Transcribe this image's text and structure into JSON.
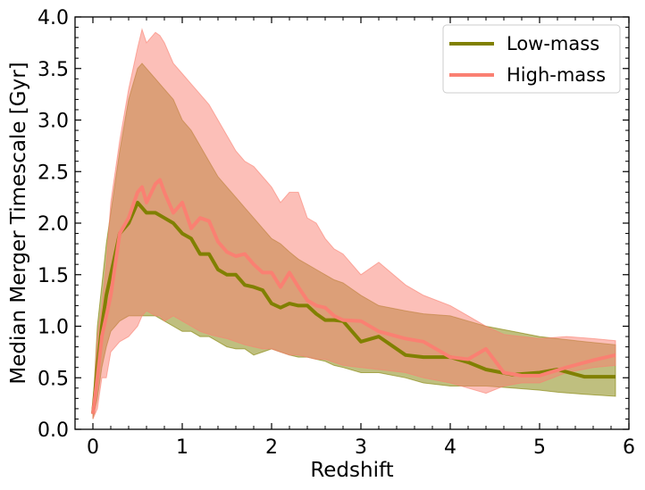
{
  "chart_data": {
    "type": "line",
    "title": "",
    "xlabel": "Redshift",
    "ylabel": "Median Merger Timescale [Gyr]",
    "xlim": [
      -0.2,
      6.0
    ],
    "ylim": [
      0.0,
      4.0
    ],
    "xticks": [
      0,
      1,
      2,
      3,
      4,
      5,
      6
    ],
    "xtick_labels": [
      "0",
      "1",
      "2",
      "3",
      "4",
      "5",
      "6"
    ],
    "yticks": [
      0.0,
      0.5,
      1.0,
      1.5,
      2.0,
      2.5,
      3.0,
      3.5,
      4.0
    ],
    "ytick_labels": [
      "0.0",
      "0.5",
      "1.0",
      "1.5",
      "2.0",
      "2.5",
      "3.0",
      "3.5",
      "4.0"
    ],
    "grid": false,
    "legend_position": "top-right",
    "series": [
      {
        "name": "Low-mass",
        "color": "#808000",
        "fill_color": "#808000",
        "fill_opacity": 0.5,
        "x": [
          0.0,
          0.05,
          0.1,
          0.15,
          0.2,
          0.3,
          0.4,
          0.5,
          0.55,
          0.6,
          0.7,
          0.8,
          0.9,
          1.0,
          1.1,
          1.2,
          1.3,
          1.4,
          1.5,
          1.6,
          1.7,
          1.8,
          1.9,
          2.0,
          2.1,
          2.2,
          2.3,
          2.4,
          2.5,
          2.6,
          2.7,
          2.8,
          3.0,
          3.2,
          3.5,
          3.7,
          4.0,
          4.2,
          4.4,
          4.7,
          5.0,
          5.2,
          5.5,
          5.85
        ],
        "values": [
          0.15,
          0.6,
          1.0,
          1.3,
          1.5,
          1.9,
          2.0,
          2.2,
          2.15,
          2.1,
          2.1,
          2.05,
          2.0,
          1.9,
          1.85,
          1.7,
          1.7,
          1.55,
          1.5,
          1.5,
          1.4,
          1.38,
          1.35,
          1.22,
          1.18,
          1.22,
          1.2,
          1.2,
          1.12,
          1.06,
          1.06,
          1.05,
          0.85,
          0.9,
          0.72,
          0.7,
          0.7,
          0.65,
          0.58,
          0.53,
          0.55,
          0.58,
          0.51,
          0.51
        ],
        "lower": [
          0.1,
          0.3,
          0.6,
          0.8,
          0.95,
          1.05,
          1.1,
          1.1,
          1.1,
          1.1,
          1.1,
          1.05,
          1.0,
          0.95,
          0.95,
          0.9,
          0.9,
          0.85,
          0.8,
          0.78,
          0.78,
          0.72,
          0.75,
          0.78,
          0.75,
          0.72,
          0.7,
          0.7,
          0.68,
          0.66,
          0.62,
          0.6,
          0.55,
          0.55,
          0.5,
          0.45,
          0.42,
          0.42,
          0.42,
          0.4,
          0.38,
          0.36,
          0.34,
          0.32
        ],
        "upper": [
          0.2,
          1.0,
          1.4,
          1.8,
          2.1,
          2.7,
          3.2,
          3.5,
          3.55,
          3.5,
          3.4,
          3.3,
          3.2,
          3.0,
          2.9,
          2.75,
          2.6,
          2.45,
          2.35,
          2.25,
          2.15,
          2.05,
          1.95,
          1.85,
          1.8,
          1.72,
          1.65,
          1.6,
          1.55,
          1.5,
          1.45,
          1.42,
          1.3,
          1.2,
          1.15,
          1.12,
          1.1,
          1.05,
          1.0,
          0.95,
          0.9,
          0.88,
          0.85,
          0.82
        ]
      },
      {
        "name": "High-mass",
        "color": "#fa8072",
        "fill_color": "#fa8072",
        "fill_opacity": 0.5,
        "x": [
          0.0,
          0.05,
          0.1,
          0.15,
          0.2,
          0.3,
          0.4,
          0.5,
          0.55,
          0.6,
          0.7,
          0.75,
          0.8,
          0.9,
          1.0,
          1.1,
          1.2,
          1.3,
          1.4,
          1.5,
          1.6,
          1.7,
          1.8,
          1.9,
          2.0,
          2.1,
          2.2,
          2.3,
          2.4,
          2.5,
          2.6,
          2.7,
          2.8,
          3.0,
          3.2,
          3.5,
          3.7,
          4.0,
          4.2,
          4.4,
          4.6,
          4.8,
          5.0,
          5.3,
          5.6,
          5.85
        ],
        "values": [
          0.15,
          0.5,
          0.9,
          1.1,
          1.3,
          1.9,
          2.05,
          2.3,
          2.35,
          2.2,
          2.38,
          2.42,
          2.3,
          2.1,
          2.2,
          1.95,
          2.05,
          2.02,
          1.82,
          1.72,
          1.68,
          1.7,
          1.6,
          1.52,
          1.52,
          1.38,
          1.52,
          1.38,
          1.25,
          1.2,
          1.18,
          1.1,
          1.06,
          1.05,
          0.95,
          0.88,
          0.85,
          0.7,
          0.68,
          0.78,
          0.55,
          0.52,
          0.52,
          0.6,
          0.67,
          0.72
        ],
        "lower": [
          0.1,
          0.2,
          0.5,
          0.5,
          0.75,
          0.85,
          0.9,
          1.0,
          1.1,
          1.15,
          1.1,
          1.1,
          1.05,
          1.1,
          1.05,
          1.0,
          0.95,
          0.92,
          0.9,
          0.88,
          0.85,
          0.82,
          0.8,
          0.78,
          0.78,
          0.75,
          0.72,
          0.72,
          0.7,
          0.68,
          0.68,
          0.65,
          0.62,
          0.6,
          0.58,
          0.55,
          0.5,
          0.45,
          0.4,
          0.35,
          0.42,
          0.45,
          0.45,
          0.55,
          0.6,
          0.62
        ],
        "upper": [
          0.2,
          0.9,
          1.2,
          1.6,
          2.2,
          2.8,
          3.3,
          3.7,
          3.88,
          3.75,
          3.85,
          3.82,
          3.75,
          3.55,
          3.45,
          3.35,
          3.25,
          3.15,
          3.0,
          2.85,
          2.7,
          2.6,
          2.55,
          2.45,
          2.35,
          2.2,
          2.3,
          2.3,
          2.05,
          2.0,
          1.85,
          1.75,
          1.7,
          1.5,
          1.62,
          1.4,
          1.3,
          1.2,
          1.1,
          1.0,
          0.92,
          0.9,
          0.88,
          0.9,
          0.88,
          0.86
        ]
      }
    ]
  }
}
